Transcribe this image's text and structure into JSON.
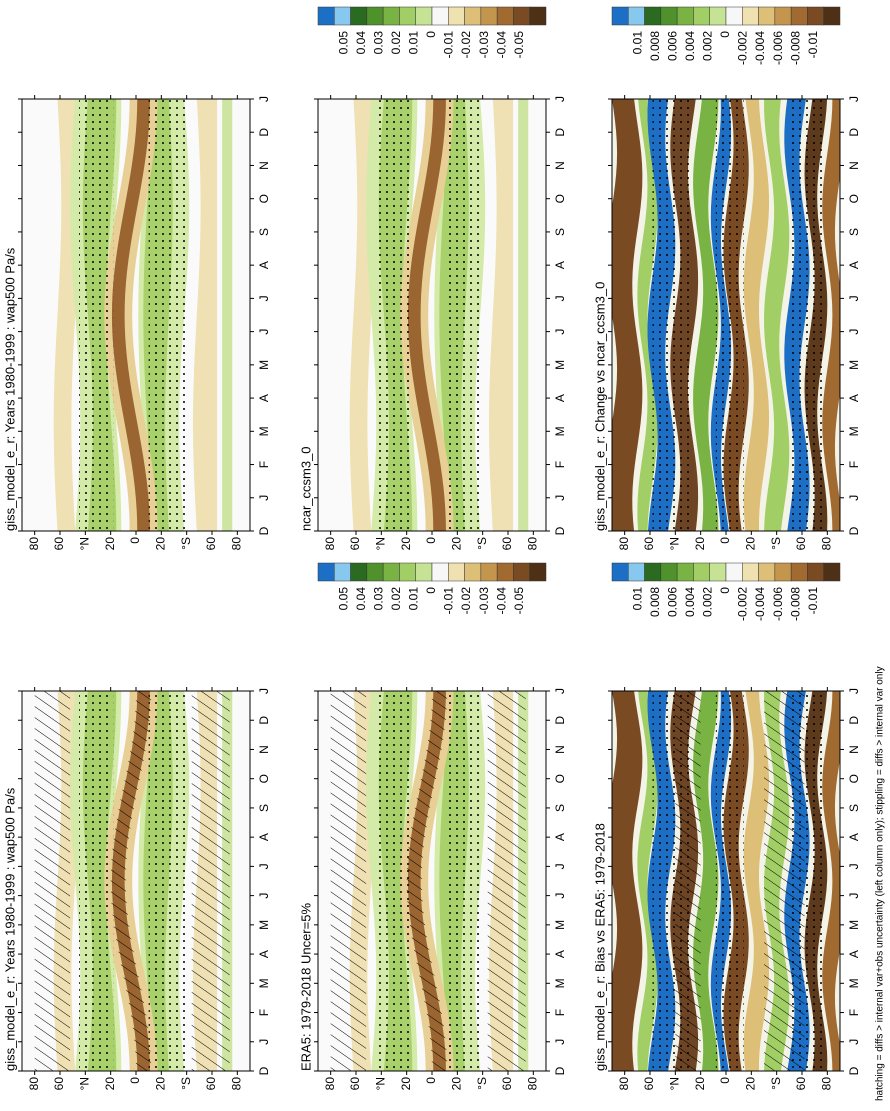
{
  "chart_data": [
    {
      "type": "contour",
      "title": "giss_model_e_r: Years 1980-1999 : wap500 Pa/s",
      "categories": [
        "D",
        "J",
        "F",
        "M",
        "A",
        "M",
        "J",
        "J",
        "A",
        "S",
        "O",
        "N",
        "D",
        "J"
      ],
      "ylim": [
        -90,
        90
      ],
      "yticks": [
        80,
        60,
        {
          "value": 40,
          "label": "°N"
        },
        20,
        0,
        {
          "value": -20,
          "label": "20"
        },
        {
          "value": -40,
          "label": "°S"
        },
        {
          "value": -60,
          "label": "60"
        },
        {
          "value": -80,
          "label": "80"
        }
      ],
      "hatching": true
    },
    {
      "type": "contour",
      "title": "ERA5: 1979-2018 Uncer=5%",
      "categories": [
        "D",
        "J",
        "F",
        "M",
        "A",
        "M",
        "J",
        "J",
        "A",
        "S",
        "O",
        "N",
        "D",
        "J"
      ],
      "ylim": [
        -90,
        90
      ],
      "yticks": [
        80,
        60,
        {
          "value": 40,
          "label": "°N"
        },
        20,
        0,
        {
          "value": -20,
          "label": "20"
        },
        {
          "value": -40,
          "label": "°S"
        },
        {
          "value": -60,
          "label": "60"
        },
        {
          "value": -80,
          "label": "80"
        }
      ],
      "hatching": true,
      "colorbar": {
        "ticks": [
          0.05,
          0.04,
          0.03,
          0.02,
          0.01,
          0,
          -0.01,
          -0.02,
          -0.03,
          -0.04,
          -0.05
        ],
        "colors": [
          "#1c6fc4",
          "#87c8ef",
          "#2a6b21",
          "#4f922c",
          "#78b343",
          "#a2cf65",
          "#c6e395",
          "#f7f7f7",
          "#f0e2b0",
          "#ddbf78",
          "#c4954c",
          "#a06a30",
          "#7a4b22",
          "#4e3016"
        ]
      }
    },
    {
      "type": "contour",
      "title": "giss_model_e_r: Bias vs ERA5: 1979-2018",
      "categories": [
        "D",
        "J",
        "F",
        "M",
        "A",
        "M",
        "J",
        "J",
        "A",
        "S",
        "O",
        "N",
        "D",
        "J"
      ],
      "ylim": [
        -90,
        90
      ],
      "yticks": [
        80,
        60,
        {
          "value": 40,
          "label": "°N"
        },
        20,
        0,
        {
          "value": -20,
          "label": "20"
        },
        {
          "value": -40,
          "label": "°S"
        },
        {
          "value": -60,
          "label": "60"
        },
        {
          "value": -80,
          "label": "80"
        }
      ],
      "hatching": true,
      "colorbar": {
        "ticks": [
          0.01,
          0.008,
          0.006,
          0.004,
          0.002,
          0,
          -0.002,
          -0.004,
          -0.006,
          -0.008,
          -0.01
        ],
        "colors": [
          "#1c6fc4",
          "#87c8ef",
          "#2a6b21",
          "#4f922c",
          "#78b343",
          "#a2cf65",
          "#c6e395",
          "#f7f7f7",
          "#f0e2b0",
          "#ddbf78",
          "#c4954c",
          "#a06a30",
          "#7a4b22",
          "#4e3016"
        ]
      }
    },
    {
      "type": "contour",
      "title": "giss_model_e_r: Years 1980-1999 : wap500 Pa/s",
      "categories": [
        "D",
        "J",
        "F",
        "M",
        "A",
        "M",
        "J",
        "J",
        "A",
        "S",
        "O",
        "N",
        "D",
        "J"
      ],
      "ylim": [
        -90,
        90
      ],
      "yticks": [
        80,
        60,
        {
          "value": 40,
          "label": "°N"
        },
        20,
        0,
        {
          "value": -20,
          "label": "20"
        },
        {
          "value": -40,
          "label": "°S"
        },
        {
          "value": -60,
          "label": "60"
        },
        {
          "value": -80,
          "label": "80"
        }
      ],
      "hatching": false
    },
    {
      "type": "contour",
      "title": "ncar_ccsm3_0",
      "categories": [
        "D",
        "J",
        "F",
        "M",
        "A",
        "M",
        "J",
        "J",
        "A",
        "S",
        "O",
        "N",
        "D",
        "J"
      ],
      "ylim": [
        -90,
        90
      ],
      "yticks": [
        80,
        60,
        {
          "value": 40,
          "label": "°N"
        },
        20,
        0,
        {
          "value": -20,
          "label": "20"
        },
        {
          "value": -40,
          "label": "°S"
        },
        {
          "value": -60,
          "label": "60"
        },
        {
          "value": -80,
          "label": "80"
        }
      ],
      "hatching": false,
      "colorbar": {
        "ticks": [
          0.05,
          0.04,
          0.03,
          0.02,
          0.01,
          0,
          -0.01,
          -0.02,
          -0.03,
          -0.04,
          -0.05
        ],
        "colors": [
          "#1c6fc4",
          "#87c8ef",
          "#2a6b21",
          "#4f922c",
          "#78b343",
          "#a2cf65",
          "#c6e395",
          "#f7f7f7",
          "#f0e2b0",
          "#ddbf78",
          "#c4954c",
          "#a06a30",
          "#7a4b22",
          "#4e3016"
        ]
      }
    },
    {
      "type": "contour",
      "title": "giss_model_e_r: Change vs ncar_ccsm3_0",
      "categories": [
        "D",
        "J",
        "F",
        "M",
        "A",
        "M",
        "J",
        "J",
        "A",
        "S",
        "O",
        "N",
        "D",
        "J"
      ],
      "ylim": [
        -90,
        90
      ],
      "yticks": [
        80,
        60,
        {
          "value": 40,
          "label": "°N"
        },
        20,
        0,
        {
          "value": -20,
          "label": "20"
        },
        {
          "value": -40,
          "label": "°S"
        },
        {
          "value": -60,
          "label": "60"
        },
        {
          "value": -80,
          "label": "80"
        }
      ],
      "hatching": false,
      "colorbar": {
        "ticks": [
          0.01,
          0.008,
          0.006,
          0.004,
          0.002,
          0,
          -0.002,
          -0.004,
          -0.006,
          -0.008,
          -0.01
        ],
        "colors": [
          "#1c6fc4",
          "#87c8ef",
          "#2a6b21",
          "#4f922c",
          "#78b343",
          "#a2cf65",
          "#c6e395",
          "#f7f7f7",
          "#f0e2b0",
          "#ddbf78",
          "#c4954c",
          "#a06a30",
          "#7a4b22",
          "#4e3016"
        ]
      }
    }
  ],
  "footnote": "hatching = diffs > internal var+obs uncertainty (left column only); stippling = diffs > internal var only"
}
